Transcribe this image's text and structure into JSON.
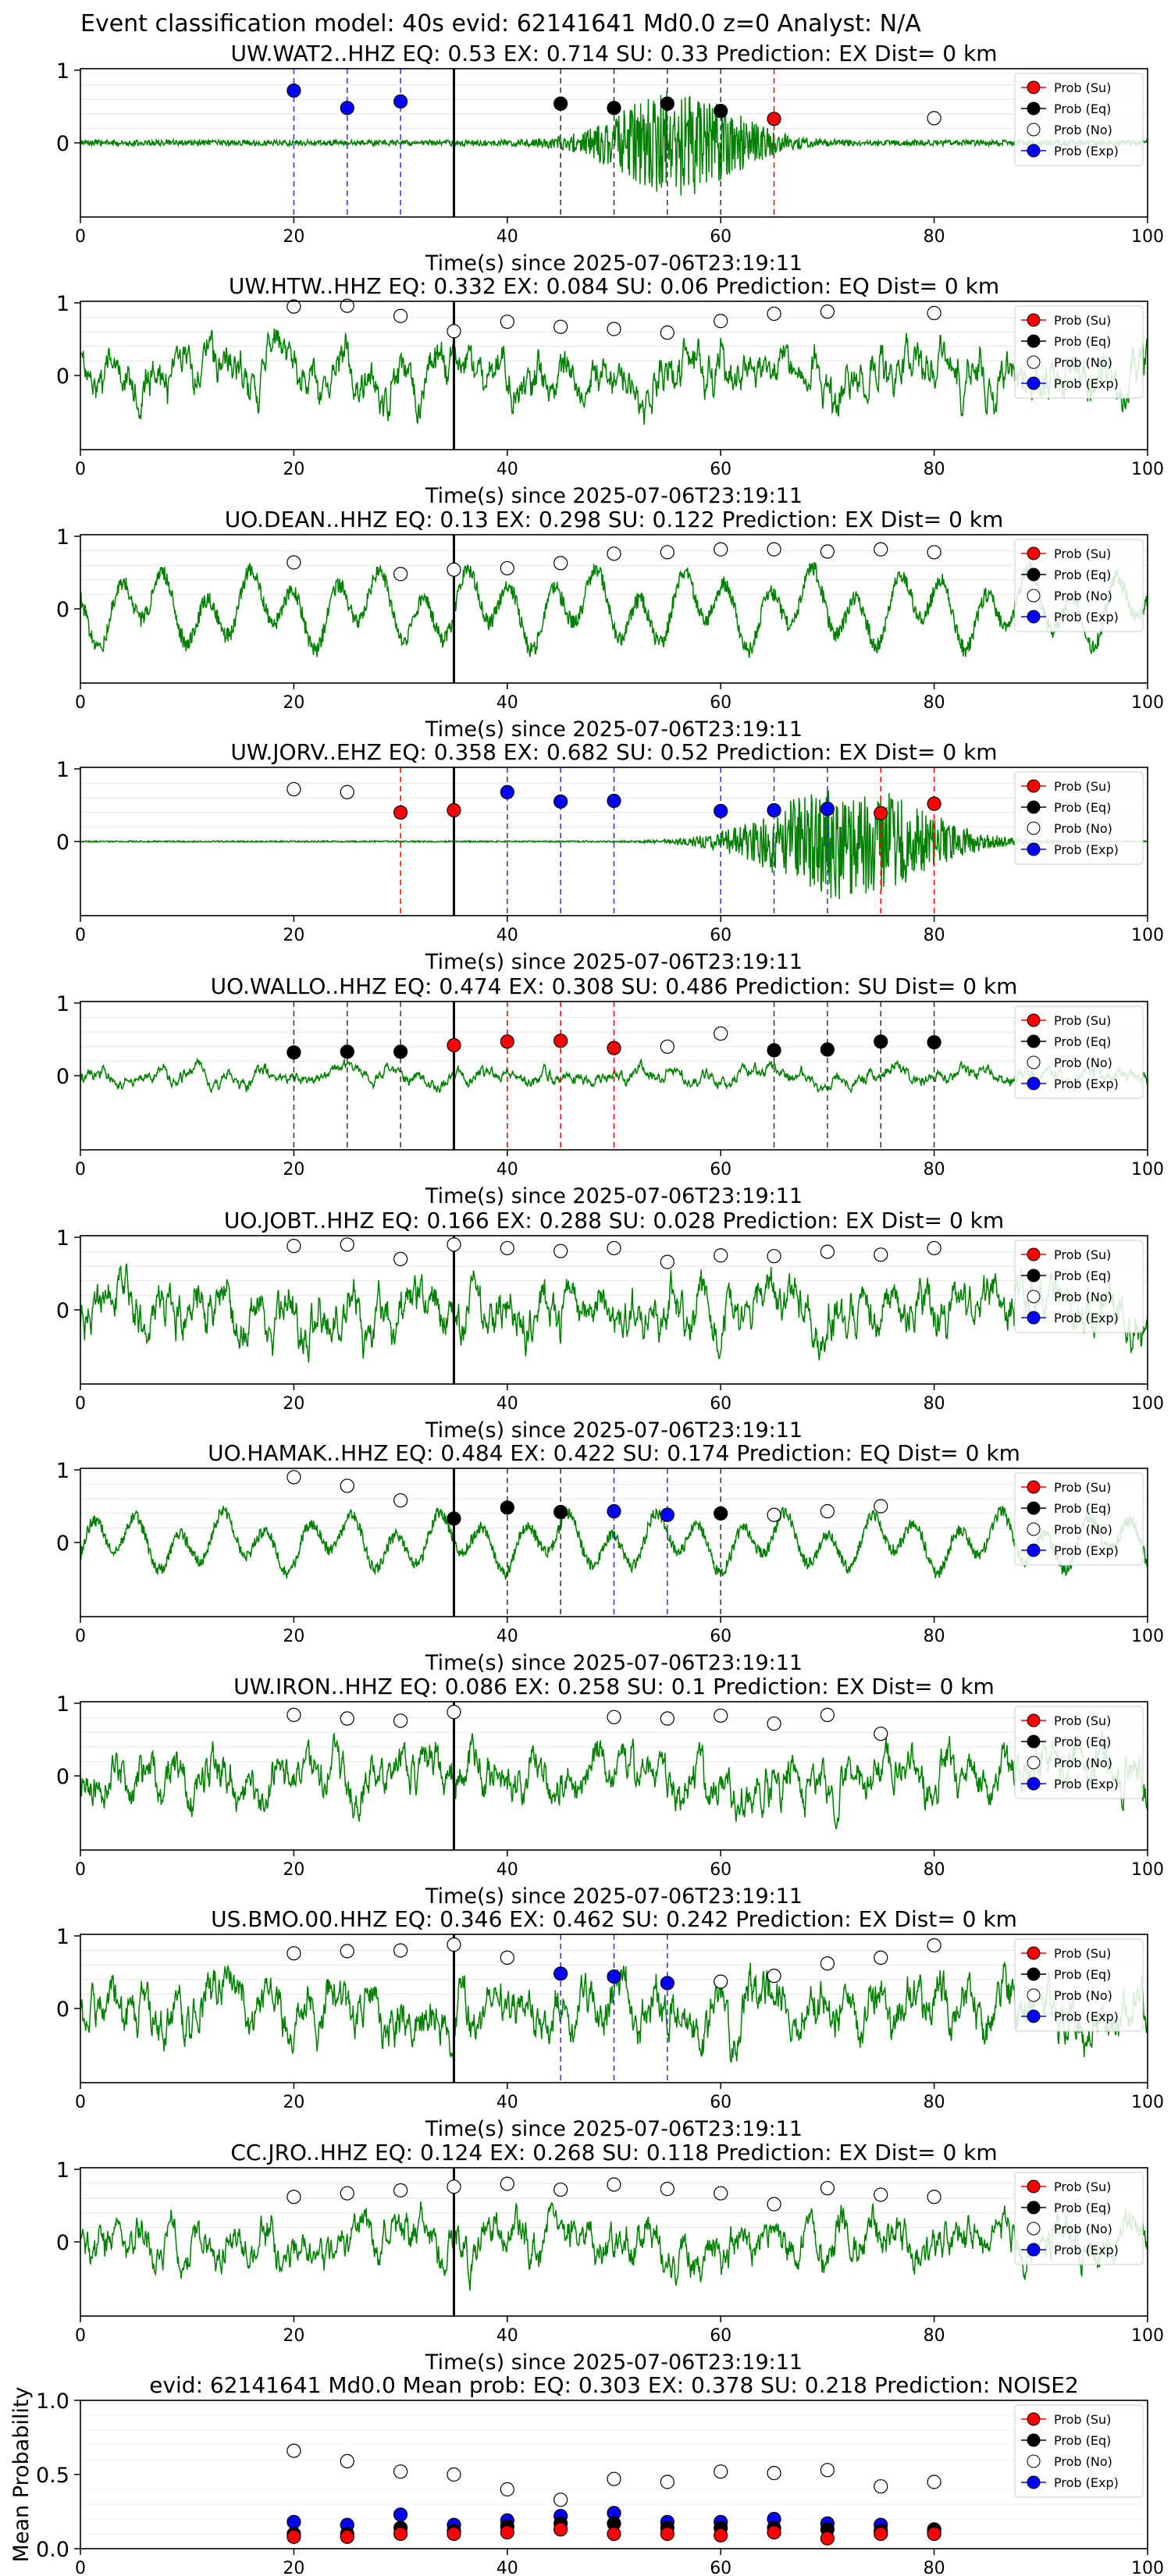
{
  "figure_title": "Event classification model: 40s evid: 62141641 Md0.0 z=0 Analyst: N/A",
  "chart_data": [
    {
      "type": "line",
      "station": "UW.WAT2..HHZ",
      "title": "UW.WAT2..HHZ   EQ: 0.53   EX: 0.714   SU: 0.33    Prediction: EX    Dist= 0 km",
      "xlabel": "Time(s) since 2025-07-06T23:19:11",
      "xlim": [
        0,
        100
      ],
      "xticks": [
        "0",
        "20",
        "40",
        "60",
        "80",
        "100"
      ],
      "yticks": [
        "1",
        "0"
      ],
      "waveform": {
        "style": "burst",
        "amp": 0.04,
        "burst_center": 56,
        "burst_width": 7,
        "burst_amp": 0.7
      },
      "arrival_s": 35,
      "points": [
        {
          "x": 20,
          "y": 0.72,
          "cls": "Exp"
        },
        {
          "x": 25,
          "y": 0.48,
          "cls": "Exp"
        },
        {
          "x": 30,
          "y": 0.57,
          "cls": "Exp"
        },
        {
          "x": 45,
          "y": 0.54,
          "cls": "Eq"
        },
        {
          "x": 50,
          "y": 0.48,
          "cls": "Eq"
        },
        {
          "x": 55,
          "y": 0.54,
          "cls": "Eq"
        },
        {
          "x": 60,
          "y": 0.44,
          "cls": "Eq"
        },
        {
          "x": 65,
          "y": 0.33,
          "cls": "Su"
        },
        {
          "x": 80,
          "y": 0.34,
          "cls": "No"
        }
      ]
    },
    {
      "type": "line",
      "station": "UW.HTW..HHZ",
      "title": "UW.HTW..HHZ   EQ: 0.332  EX: 0.084  SU: 0.06    Prediction: EQ    Dist= 0 km",
      "xlabel": "Time(s) since 2025-07-06T23:19:11",
      "xlim": [
        0,
        100
      ],
      "xticks": [
        "0",
        "20",
        "40",
        "60",
        "80",
        "100"
      ],
      "yticks": [
        "1",
        "0"
      ],
      "waveform": {
        "style": "noisy",
        "amp": 0.45
      },
      "arrival_s": 35,
      "points": [
        {
          "x": 20,
          "y": 0.95,
          "cls": "No"
        },
        {
          "x": 25,
          "y": 0.96,
          "cls": "No"
        },
        {
          "x": 30,
          "y": 0.82,
          "cls": "No"
        },
        {
          "x": 35,
          "y": 0.61,
          "cls": "No"
        },
        {
          "x": 40,
          "y": 0.74,
          "cls": "No"
        },
        {
          "x": 45,
          "y": 0.67,
          "cls": "No"
        },
        {
          "x": 50,
          "y": 0.64,
          "cls": "No"
        },
        {
          "x": 55,
          "y": 0.59,
          "cls": "No"
        },
        {
          "x": 60,
          "y": 0.75,
          "cls": "No"
        },
        {
          "x": 65,
          "y": 0.85,
          "cls": "No"
        },
        {
          "x": 70,
          "y": 0.88,
          "cls": "No"
        },
        {
          "x": 80,
          "y": 0.86,
          "cls": "No"
        }
      ]
    },
    {
      "type": "line",
      "station": "UO.DEAN..HHZ",
      "title": "UO.DEAN..HHZ   EQ: 0.13   EX: 0.298  SU: 0.122   Prediction: EX    Dist= 0 km",
      "xlabel": "Time(s) since 2025-07-06T23:19:11",
      "xlim": [
        0,
        100
      ],
      "xticks": [
        "0",
        "20",
        "40",
        "60",
        "80",
        "100"
      ],
      "yticks": [
        "1",
        "0"
      ],
      "waveform": {
        "style": "smooth",
        "amp": 0.4
      },
      "arrival_s": 35,
      "points": [
        {
          "x": 20,
          "y": 0.64,
          "cls": "No"
        },
        {
          "x": 30,
          "y": 0.48,
          "cls": "No"
        },
        {
          "x": 35,
          "y": 0.54,
          "cls": "No"
        },
        {
          "x": 40,
          "y": 0.56,
          "cls": "No"
        },
        {
          "x": 45,
          "y": 0.63,
          "cls": "No"
        },
        {
          "x": 50,
          "y": 0.76,
          "cls": "No"
        },
        {
          "x": 55,
          "y": 0.78,
          "cls": "No"
        },
        {
          "x": 60,
          "y": 0.82,
          "cls": "No"
        },
        {
          "x": 65,
          "y": 0.82,
          "cls": "No"
        },
        {
          "x": 70,
          "y": 0.79,
          "cls": "No"
        },
        {
          "x": 75,
          "y": 0.82,
          "cls": "No"
        },
        {
          "x": 80,
          "y": 0.78,
          "cls": "No"
        }
      ]
    },
    {
      "type": "line",
      "station": "UW.JORV..EHZ",
      "title": "UW.JORV..EHZ   EQ: 0.358  EX: 0.682  SU: 0.52    Prediction: EX    Dist= 0 km",
      "xlabel": "Time(s) since 2025-07-06T23:19:11",
      "xlim": [
        0,
        100
      ],
      "xticks": [
        "0",
        "20",
        "40",
        "60",
        "80",
        "100"
      ],
      "yticks": [
        "1",
        "0"
      ],
      "waveform": {
        "style": "burst",
        "amp": 0.01,
        "burst_center": 72,
        "burst_width": 9,
        "burst_amp": 0.8
      },
      "arrival_s": 35,
      "points": [
        {
          "x": 20,
          "y": 0.72,
          "cls": "No"
        },
        {
          "x": 25,
          "y": 0.68,
          "cls": "No"
        },
        {
          "x": 30,
          "y": 0.4,
          "cls": "Su"
        },
        {
          "x": 35,
          "y": 0.43,
          "cls": "Su"
        },
        {
          "x": 40,
          "y": 0.68,
          "cls": "Exp"
        },
        {
          "x": 45,
          "y": 0.55,
          "cls": "Exp"
        },
        {
          "x": 50,
          "y": 0.56,
          "cls": "Exp"
        },
        {
          "x": 60,
          "y": 0.42,
          "cls": "Exp"
        },
        {
          "x": 65,
          "y": 0.43,
          "cls": "Exp"
        },
        {
          "x": 70,
          "y": 0.45,
          "cls": "Exp"
        },
        {
          "x": 75,
          "y": 0.39,
          "cls": "Su"
        },
        {
          "x": 80,
          "y": 0.52,
          "cls": "Su"
        }
      ]
    },
    {
      "type": "line",
      "station": "UO.WALLO..HHZ",
      "title": "UO.WALLO..HHZ   EQ: 0.474  EX: 0.308  SU: 0.486   Prediction: SU    Dist= 0 km",
      "xlabel": "Time(s) since 2025-07-06T23:19:11",
      "xlim": [
        0,
        100
      ],
      "xticks": [
        "0",
        "20",
        "40",
        "60",
        "80",
        "100"
      ],
      "yticks": [
        "1",
        "0"
      ],
      "waveform": {
        "style": "noisy",
        "amp": 0.15
      },
      "arrival_s": 35,
      "points": [
        {
          "x": 20,
          "y": 0.32,
          "cls": "Eq"
        },
        {
          "x": 25,
          "y": 0.33,
          "cls": "Eq"
        },
        {
          "x": 30,
          "y": 0.33,
          "cls": "Eq"
        },
        {
          "x": 35,
          "y": 0.42,
          "cls": "Su"
        },
        {
          "x": 40,
          "y": 0.47,
          "cls": "Su"
        },
        {
          "x": 45,
          "y": 0.48,
          "cls": "Su"
        },
        {
          "x": 50,
          "y": 0.38,
          "cls": "Su"
        },
        {
          "x": 55,
          "y": 0.4,
          "cls": "No"
        },
        {
          "x": 60,
          "y": 0.58,
          "cls": "No"
        },
        {
          "x": 65,
          "y": 0.35,
          "cls": "Eq"
        },
        {
          "x": 70,
          "y": 0.36,
          "cls": "Eq"
        },
        {
          "x": 75,
          "y": 0.47,
          "cls": "Eq"
        },
        {
          "x": 80,
          "y": 0.46,
          "cls": "Eq"
        }
      ]
    },
    {
      "type": "line",
      "station": "UO.JOBT..HHZ",
      "title": "UO.JOBT..HHZ   EQ: 0.166  EX: 0.288  SU: 0.028   Prediction: EX    Dist= 0 km",
      "xlabel": "Time(s) since 2025-07-06T23:19:11",
      "xlim": [
        0,
        100
      ],
      "xticks": [
        "0",
        "20",
        "40",
        "60",
        "80",
        "100"
      ],
      "yticks": [
        "1",
        "0"
      ],
      "waveform": {
        "style": "noisy",
        "amp": 0.5
      },
      "arrival_s": 35,
      "points": [
        {
          "x": 20,
          "y": 0.88,
          "cls": "No"
        },
        {
          "x": 25,
          "y": 0.9,
          "cls": "No"
        },
        {
          "x": 30,
          "y": 0.7,
          "cls": "No"
        },
        {
          "x": 35,
          "y": 0.9,
          "cls": "No"
        },
        {
          "x": 40,
          "y": 0.85,
          "cls": "No"
        },
        {
          "x": 45,
          "y": 0.81,
          "cls": "No"
        },
        {
          "x": 50,
          "y": 0.85,
          "cls": "No"
        },
        {
          "x": 55,
          "y": 0.66,
          "cls": "No"
        },
        {
          "x": 60,
          "y": 0.75,
          "cls": "No"
        },
        {
          "x": 65,
          "y": 0.74,
          "cls": "No"
        },
        {
          "x": 70,
          "y": 0.8,
          "cls": "No"
        },
        {
          "x": 75,
          "y": 0.76,
          "cls": "No"
        },
        {
          "x": 80,
          "y": 0.85,
          "cls": "No"
        }
      ]
    },
    {
      "type": "line",
      "station": "UO.HAMAK..HHZ",
      "title": "UO.HAMAK..HHZ   EQ: 0.484  EX: 0.422  SU: 0.174   Prediction: EQ    Dist= 0 km",
      "xlabel": "Time(s) since 2025-07-06T23:19:11",
      "xlim": [
        0,
        100
      ],
      "xticks": [
        "0",
        "20",
        "40",
        "60",
        "80",
        "100"
      ],
      "yticks": [
        "1",
        "0"
      ],
      "waveform": {
        "style": "smooth",
        "amp": 0.3
      },
      "arrival_s": 35,
      "points": [
        {
          "x": 20,
          "y": 0.9,
          "cls": "No"
        },
        {
          "x": 25,
          "y": 0.78,
          "cls": "No"
        },
        {
          "x": 30,
          "y": 0.58,
          "cls": "No"
        },
        {
          "x": 35,
          "y": 0.33,
          "cls": "Eq"
        },
        {
          "x": 40,
          "y": 0.48,
          "cls": "Eq"
        },
        {
          "x": 45,
          "y": 0.42,
          "cls": "Eq"
        },
        {
          "x": 50,
          "y": 0.43,
          "cls": "Exp"
        },
        {
          "x": 55,
          "y": 0.38,
          "cls": "Exp"
        },
        {
          "x": 60,
          "y": 0.4,
          "cls": "Eq"
        },
        {
          "x": 65,
          "y": 0.38,
          "cls": "No"
        },
        {
          "x": 70,
          "y": 0.43,
          "cls": "No"
        },
        {
          "x": 75,
          "y": 0.5,
          "cls": "No"
        }
      ]
    },
    {
      "type": "line",
      "station": "UW.IRON..HHZ",
      "title": "UW.IRON..HHZ   EQ: 0.086  EX: 0.258  SU: 0.1    Prediction: EX    Dist= 0 km",
      "xlabel": "Time(s) since 2025-07-06T23:19:11",
      "xlim": [
        0,
        100
      ],
      "xticks": [
        "0",
        "20",
        "40",
        "60",
        "80",
        "100"
      ],
      "yticks": [
        "1",
        "0"
      ],
      "waveform": {
        "style": "noisy",
        "amp": 0.45
      },
      "arrival_s": 35,
      "points": [
        {
          "x": 20,
          "y": 0.84,
          "cls": "No"
        },
        {
          "x": 25,
          "y": 0.79,
          "cls": "No"
        },
        {
          "x": 30,
          "y": 0.76,
          "cls": "No"
        },
        {
          "x": 35,
          "y": 0.88,
          "cls": "No"
        },
        {
          "x": 50,
          "y": 0.81,
          "cls": "No"
        },
        {
          "x": 55,
          "y": 0.79,
          "cls": "No"
        },
        {
          "x": 60,
          "y": 0.83,
          "cls": "No"
        },
        {
          "x": 65,
          "y": 0.72,
          "cls": "No"
        },
        {
          "x": 70,
          "y": 0.84,
          "cls": "No"
        },
        {
          "x": 75,
          "y": 0.58,
          "cls": "No"
        }
      ]
    },
    {
      "type": "line",
      "station": "US.BMO.00.HHZ",
      "title": "US.BMO.00.HHZ   EQ: 0.346  EX: 0.462  SU: 0.242   Prediction: EX    Dist= 0 km",
      "xlabel": "Time(s) since 2025-07-06T23:19:11",
      "xlim": [
        0,
        100
      ],
      "xticks": [
        "0",
        "20",
        "40",
        "60",
        "80",
        "100"
      ],
      "yticks": [
        "1",
        "0"
      ],
      "waveform": {
        "style": "noisy",
        "amp": 0.5
      },
      "arrival_s": 35,
      "points": [
        {
          "x": 20,
          "y": 0.76,
          "cls": "No"
        },
        {
          "x": 25,
          "y": 0.79,
          "cls": "No"
        },
        {
          "x": 30,
          "y": 0.8,
          "cls": "No"
        },
        {
          "x": 35,
          "y": 0.88,
          "cls": "No"
        },
        {
          "x": 40,
          "y": 0.7,
          "cls": "No"
        },
        {
          "x": 45,
          "y": 0.48,
          "cls": "Exp"
        },
        {
          "x": 50,
          "y": 0.44,
          "cls": "Exp"
        },
        {
          "x": 55,
          "y": 0.35,
          "cls": "Exp"
        },
        {
          "x": 60,
          "y": 0.37,
          "cls": "No"
        },
        {
          "x": 65,
          "y": 0.45,
          "cls": "No"
        },
        {
          "x": 70,
          "y": 0.62,
          "cls": "No"
        },
        {
          "x": 75,
          "y": 0.7,
          "cls": "No"
        },
        {
          "x": 80,
          "y": 0.87,
          "cls": "No"
        }
      ]
    },
    {
      "type": "line",
      "station": "CC.JRO..HHZ",
      "title": "CC.JRO..HHZ   EQ: 0.124  EX: 0.268  SU: 0.118   Prediction: EX    Dist= 0 km",
      "xlabel": "Time(s) since 2025-07-06T23:19:11",
      "xlim": [
        0,
        100
      ],
      "xticks": [
        "0",
        "20",
        "40",
        "60",
        "80",
        "100"
      ],
      "yticks": [
        "1",
        "0"
      ],
      "waveform": {
        "style": "noisy",
        "amp": 0.4
      },
      "arrival_s": 35,
      "points": [
        {
          "x": 20,
          "y": 0.62,
          "cls": "No"
        },
        {
          "x": 25,
          "y": 0.67,
          "cls": "No"
        },
        {
          "x": 30,
          "y": 0.71,
          "cls": "No"
        },
        {
          "x": 35,
          "y": 0.76,
          "cls": "No"
        },
        {
          "x": 40,
          "y": 0.8,
          "cls": "No"
        },
        {
          "x": 45,
          "y": 0.72,
          "cls": "No"
        },
        {
          "x": 50,
          "y": 0.79,
          "cls": "No"
        },
        {
          "x": 55,
          "y": 0.73,
          "cls": "No"
        },
        {
          "x": 60,
          "y": 0.67,
          "cls": "No"
        },
        {
          "x": 65,
          "y": 0.52,
          "cls": "No"
        },
        {
          "x": 70,
          "y": 0.74,
          "cls": "No"
        },
        {
          "x": 75,
          "y": 0.65,
          "cls": "No"
        },
        {
          "x": 80,
          "y": 0.62,
          "cls": "No"
        }
      ]
    },
    {
      "type": "scatter",
      "station": "mean",
      "title": "evid: 62141641   Md0.0    Mean prob:    EQ: 0.303   EX: 0.378   SU: 0.218    Prediction: NOISE2",
      "xlabel": "",
      "ylabel": "Mean Probability",
      "xlim": [
        0,
        100
      ],
      "ylim": [
        0,
        1
      ],
      "xticks": [
        "0",
        "20",
        "40",
        "60",
        "80",
        "100"
      ],
      "yticks": [
        "1.0",
        "0.5",
        "0.0"
      ],
      "x": [
        20,
        25,
        30,
        35,
        40,
        45,
        50,
        55,
        60,
        65,
        70,
        75,
        80
      ],
      "series": [
        {
          "name": "Prob (Su)",
          "values": [
            0.08,
            0.08,
            0.1,
            0.1,
            0.11,
            0.13,
            0.1,
            0.1,
            0.09,
            0.11,
            0.07,
            0.1,
            0.1
          ]
        },
        {
          "name": "Prob (Eq)",
          "values": [
            0.1,
            0.1,
            0.14,
            0.12,
            0.15,
            0.17,
            0.17,
            0.14,
            0.14,
            0.14,
            0.13,
            0.12,
            0.13
          ]
        },
        {
          "name": "Prob (No)",
          "values": [
            0.66,
            0.59,
            0.52,
            0.5,
            0.4,
            0.33,
            0.47,
            0.45,
            0.52,
            0.51,
            0.53,
            0.42,
            0.45
          ]
        },
        {
          "name": "Prob (Exp)",
          "values": [
            0.18,
            0.16,
            0.23,
            0.16,
            0.19,
            0.22,
            0.24,
            0.18,
            0.18,
            0.2,
            0.17,
            0.16,
            0.12
          ]
        }
      ]
    }
  ],
  "legend": {
    "placement": "top-right",
    "entries": [
      "Prob (Su)",
      "Prob (Eq)",
      "Prob (No)",
      "Prob (Exp)"
    ]
  },
  "colors": {
    "Su": "#ff0000",
    "Eq": "#000000",
    "No": "#ffffff",
    "Exp": "#0000ff",
    "waveform": "#008000",
    "pick_line": "#000000",
    "grid": "#e6e6e6"
  }
}
